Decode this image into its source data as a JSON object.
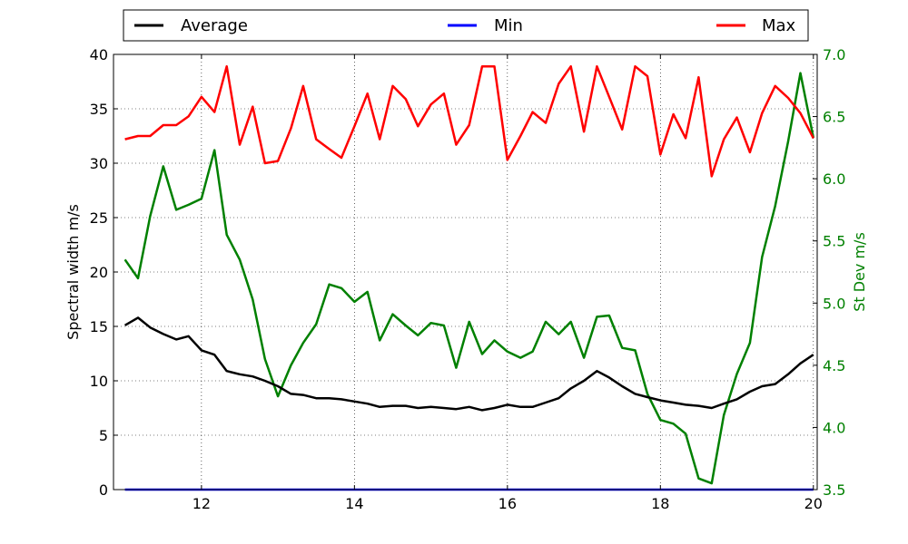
{
  "chart_data": {
    "type": "line",
    "xlim": [
      10.85,
      20.05
    ],
    "xticks": [
      12,
      14,
      16,
      18,
      20
    ],
    "y_left": {
      "label": "Spectral width m/s",
      "lim": [
        0,
        40
      ],
      "ticks": [
        0,
        5,
        10,
        15,
        20,
        25,
        30,
        35,
        40
      ]
    },
    "y_right": {
      "label": "St Dev m/s",
      "lim": [
        3.5,
        7.0
      ],
      "ticks": [
        "3.5",
        "4.0",
        "4.5",
        "5.0",
        "5.5",
        "6.0",
        "6.5",
        "7.0"
      ],
      "color": "#008000"
    },
    "grid": true,
    "legend": {
      "position": "top",
      "entries": [
        {
          "name": "Average",
          "color": "#000000"
        },
        {
          "name": "Min",
          "color": "#0000ff"
        },
        {
          "name": "Max",
          "color": "#ff0000"
        }
      ]
    },
    "x": [
      11.0,
      11.17,
      11.33,
      11.5,
      11.67,
      11.83,
      12.0,
      12.17,
      12.33,
      12.5,
      12.67,
      12.83,
      13.0,
      13.17,
      13.33,
      13.5,
      13.67,
      13.83,
      14.0,
      14.17,
      14.33,
      14.5,
      14.67,
      14.83,
      15.0,
      15.17,
      15.33,
      15.5,
      15.67,
      15.83,
      16.0,
      16.17,
      16.33,
      16.5,
      16.67,
      16.83,
      17.0,
      17.17,
      17.33,
      17.5,
      17.67,
      17.83,
      18.0,
      18.17,
      18.33,
      18.5,
      18.67,
      18.83,
      19.0,
      19.17,
      19.33,
      19.5,
      19.67,
      19.83,
      20.0
    ],
    "series": [
      {
        "name": "Average",
        "axis": "left",
        "color": "#000000",
        "values": [
          15.1,
          15.8,
          14.9,
          14.3,
          13.8,
          14.1,
          12.8,
          12.4,
          10.9,
          10.6,
          10.4,
          10.0,
          9.5,
          8.8,
          8.7,
          8.4,
          8.4,
          8.3,
          8.1,
          7.9,
          7.6,
          7.7,
          7.7,
          7.5,
          7.6,
          7.5,
          7.4,
          7.6,
          7.3,
          7.5,
          7.8,
          7.6,
          7.6,
          8.0,
          8.4,
          9.3,
          10.0,
          10.9,
          10.3,
          9.5,
          8.8,
          8.5,
          8.2,
          8.0,
          7.8,
          7.7,
          7.5,
          7.9,
          8.3,
          9.0,
          9.5,
          9.7,
          10.6,
          11.6,
          12.4
        ]
      },
      {
        "name": "Min",
        "axis": "left",
        "color": "#0000ff",
        "values": [
          0,
          0,
          0,
          0,
          0,
          0,
          0,
          0,
          0,
          0,
          0,
          0,
          0,
          0,
          0,
          0,
          0,
          0,
          0,
          0,
          0,
          0,
          0,
          0,
          0,
          0,
          0,
          0,
          0,
          0,
          0,
          0,
          0,
          0,
          0,
          0,
          0,
          0,
          0,
          0,
          0,
          0,
          0,
          0,
          0,
          0,
          0,
          0,
          0,
          0,
          0,
          0,
          0,
          0,
          0
        ]
      },
      {
        "name": "Max",
        "axis": "left",
        "color": "#ff0000",
        "values": [
          32.2,
          32.5,
          32.5,
          33.5,
          33.5,
          34.3,
          36.1,
          34.7,
          38.9,
          31.7,
          35.2,
          30.0,
          30.2,
          33.2,
          37.1,
          32.2,
          31.3,
          30.5,
          33.4,
          36.4,
          32.2,
          37.1,
          35.9,
          33.4,
          35.4,
          36.4,
          31.7,
          33.5,
          38.9,
          38.9,
          30.3,
          32.5,
          34.7,
          33.7,
          37.3,
          38.9,
          32.9,
          38.9,
          36.1,
          33.1,
          38.9,
          38.0,
          30.8,
          34.5,
          32.3,
          37.9,
          28.8,
          32.2,
          34.2,
          31.0,
          34.6,
          37.1,
          36.0,
          34.6,
          32.3
        ]
      },
      {
        "name": "St Dev",
        "axis": "right",
        "color": "#008000",
        "values": [
          5.35,
          5.2,
          5.7,
          6.1,
          5.75,
          5.79,
          5.84,
          6.23,
          5.55,
          5.35,
          5.03,
          4.55,
          4.25,
          4.5,
          4.68,
          4.83,
          5.15,
          5.12,
          5.01,
          5.09,
          4.7,
          4.91,
          4.82,
          4.74,
          4.84,
          4.82,
          4.48,
          4.85,
          4.59,
          4.7,
          4.61,
          4.56,
          4.61,
          4.85,
          4.75,
          4.85,
          4.56,
          4.89,
          4.9,
          4.64,
          4.62,
          4.27,
          4.06,
          4.03,
          3.95,
          3.59,
          3.55,
          4.1,
          4.43,
          4.68,
          5.37,
          5.78,
          6.3,
          6.85,
          6.33
        ]
      }
    ]
  }
}
